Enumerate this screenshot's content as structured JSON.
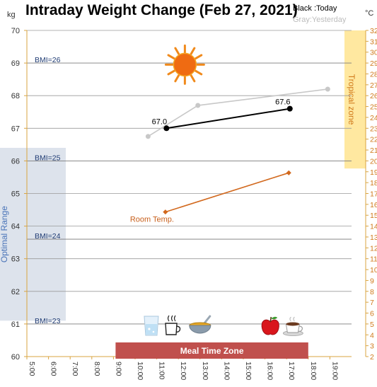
{
  "chart_data": {
    "type": "line",
    "title": "Intraday Weight Change (Feb 27, 2021)",
    "legend": {
      "today": "Black :Today",
      "yesterday": "Gray:Yesterday",
      "placement": "top-right"
    },
    "left_axis": {
      "unit": "kg",
      "range": [
        60,
        70
      ],
      "ticks": [
        "60",
        "61",
        "62",
        "63",
        "64",
        "65",
        "66",
        "67",
        "68",
        "69",
        "70"
      ]
    },
    "right_axis": {
      "unit": "°C",
      "range": [
        2,
        32
      ],
      "ticks": [
        "2",
        "3",
        "4",
        "5",
        "6",
        "7",
        "8",
        "9",
        "10",
        "11",
        "12",
        "13",
        "14",
        "15",
        "16",
        "17",
        "18",
        "19",
        "20",
        "21",
        "22",
        "23",
        "24",
        "25",
        "26",
        "27",
        "28",
        "29",
        "30",
        "31",
        "32"
      ]
    },
    "x_axis": {
      "range": [
        5,
        20
      ],
      "ticks": [
        "5:00",
        "6:00",
        "7:00",
        "8:00",
        "9:00",
        "10:00",
        "11:00",
        "12:00",
        "13:00",
        "14:00",
        "15:00",
        "16:00",
        "17:00",
        "18:00",
        "19:00"
      ]
    },
    "bmi_lines": [
      {
        "label": "BMI=26",
        "kg": 69.0
      },
      {
        "label": "BMI=25",
        "kg": 66.0
      },
      {
        "label": "BMI=24",
        "kg": 63.6
      },
      {
        "label": "BMI=23",
        "kg": 61.0
      }
    ],
    "series": [
      {
        "key": "yesterday",
        "color": "#c8c8c8",
        "points": [
          {
            "x": 10.6,
            "y": 66.75
          },
          {
            "x": 12.9,
            "y": 67.7
          },
          {
            "x": 18.9,
            "y": 68.2
          }
        ]
      },
      {
        "key": "today",
        "color": "#000000",
        "points": [
          {
            "x": 11.45,
            "y": 67.0,
            "label": "67.0"
          },
          {
            "x": 17.15,
            "y": 67.6,
            "label": "67.6"
          }
        ]
      },
      {
        "key": "room_temp",
        "name": "Room Temp.",
        "axis": "right",
        "color": "#d2691e",
        "points": [
          {
            "x": 11.4,
            "y": 15.3
          },
          {
            "x": 17.1,
            "y": 18.9
          }
        ]
      }
    ],
    "zones": {
      "optimal": {
        "label": "Optimal Range",
        "kg_range": [
          61.1,
          66.4
        ],
        "color": "#dde3ec"
      },
      "tropical": {
        "label": "Tropical zone",
        "celsius_range": [
          19.3,
          32
        ],
        "color": "#ffe8a0"
      },
      "meal": {
        "label": "Meal Time Zone",
        "x_range": [
          9.0,
          18.0
        ],
        "color": "#c0504d"
      }
    },
    "meal_icons": [
      {
        "name": "water-glass-icon",
        "x": 10.75
      },
      {
        "name": "coffee-cup-icon",
        "x": 11.7
      },
      {
        "name": "soup-bowl-icon",
        "x": 13.0
      },
      {
        "name": "apple-icon",
        "x": 16.25
      },
      {
        "name": "coffee-mug-icon",
        "x": 17.3
      }
    ],
    "decoration": {
      "name": "sun-icon",
      "x": 12.3,
      "y": 68.95
    },
    "grid": true
  }
}
